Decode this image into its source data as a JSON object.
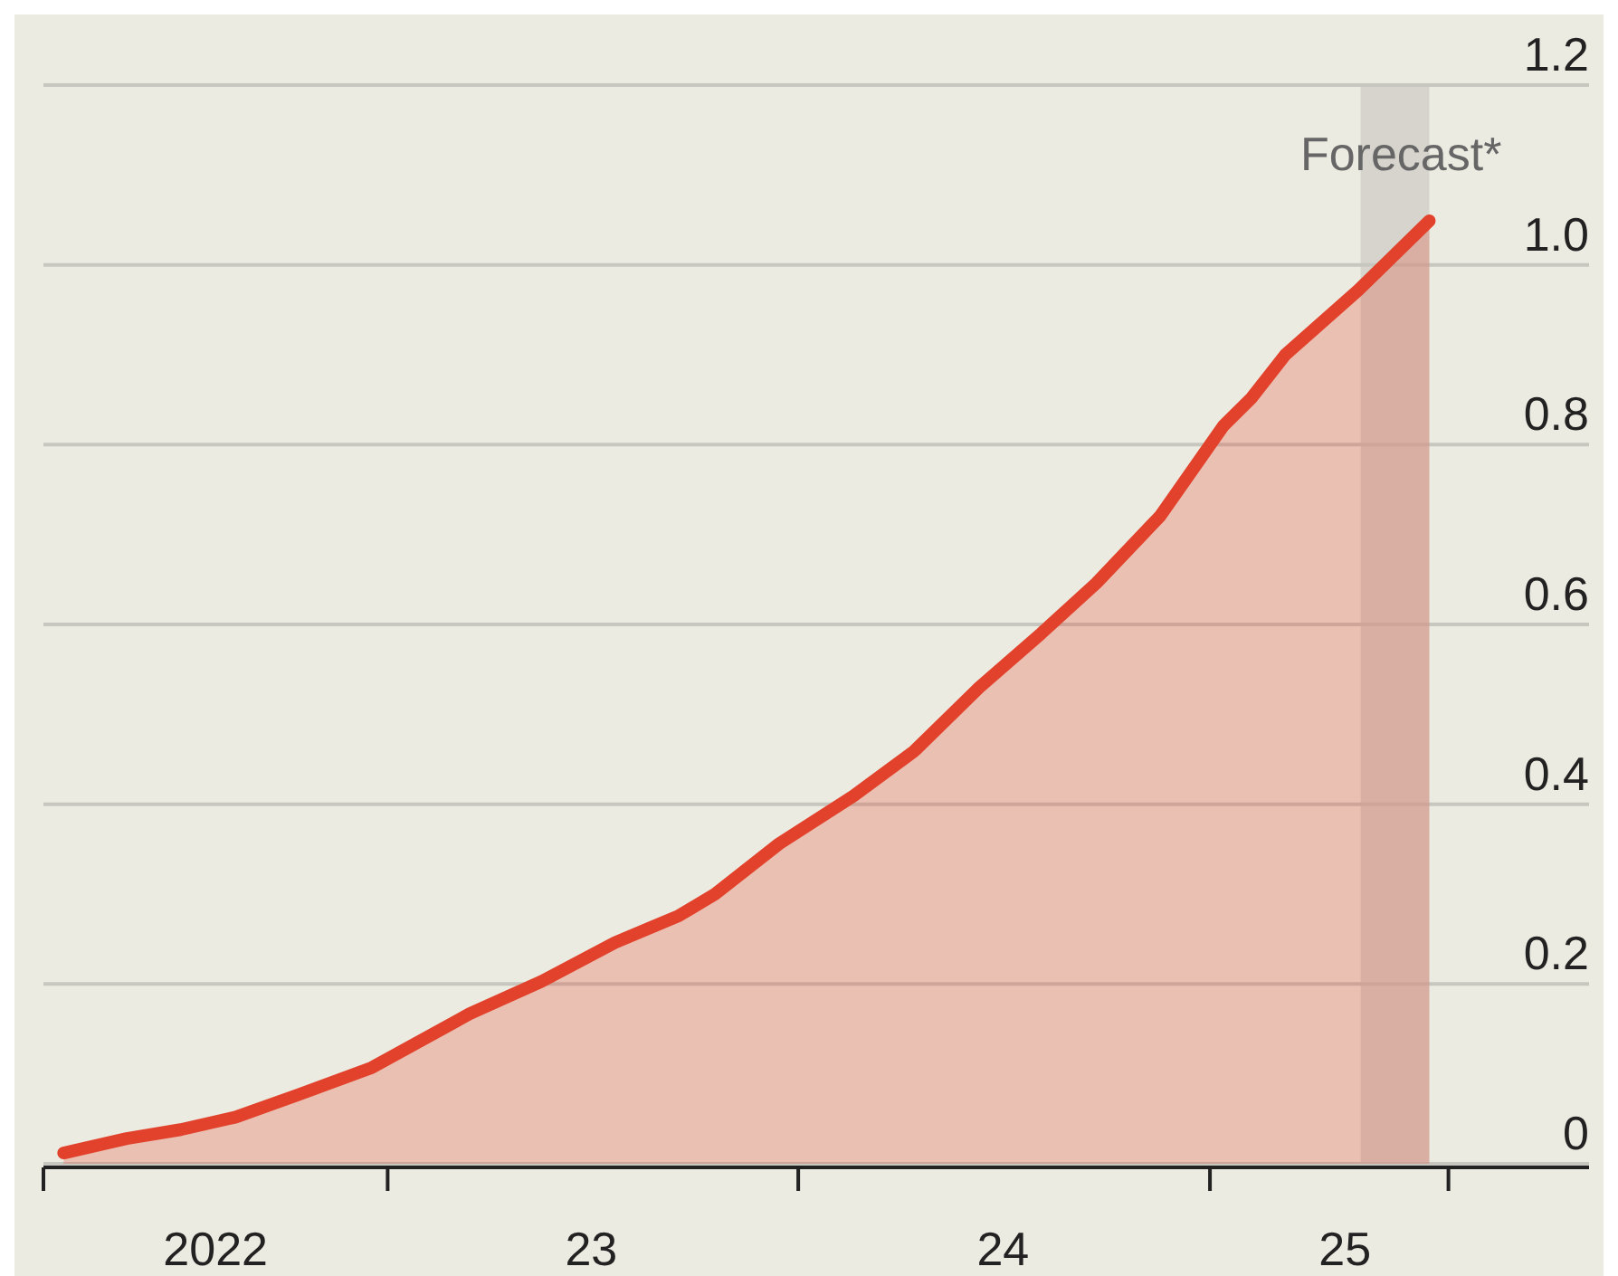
{
  "chart_data": {
    "type": "area",
    "x": [
      "2022-03-19",
      "2022-05-14",
      "2022-07-01",
      "2022-08-19",
      "2022-10-14",
      "2022-12-18",
      "2023-03-15",
      "2023-05-18",
      "2023-07-22",
      "2023-09-17",
      "2023-10-19",
      "2023-12-15",
      "2024-02-19",
      "2024-04-13",
      "2024-06-10",
      "2024-08-04",
      "2024-09-22",
      "2024-11-18",
      "2025-01-13",
      "2025-02-07",
      "2025-03-09",
      "2025-05-13",
      "2025-07-15"
    ],
    "series": [
      {
        "color": "#e2412b",
        "values": [
          0.012,
          0.028,
          0.038,
          0.052,
          0.077,
          0.107,
          0.167,
          0.203,
          0.246,
          0.276,
          0.3,
          0.356,
          0.409,
          0.459,
          0.53,
          0.59,
          0.646,
          0.721,
          0.821,
          0.852,
          0.9,
          0.972,
          1.049
        ]
      }
    ],
    "xlim": [
      "2022-03-01",
      "2025-12-04"
    ],
    "xticks": [
      {
        "value": "2022-03-01",
        "label": null
      },
      {
        "value": "2022-08-01",
        "label": "2022"
      },
      {
        "value": "2023-01-01",
        "label": null
      },
      {
        "value": "2023-07-01",
        "label": "23"
      },
      {
        "value": "2024-01-01",
        "label": null
      },
      {
        "value": "2024-07-01",
        "label": "24"
      },
      {
        "value": "2025-01-01",
        "label": null
      },
      {
        "value": "2025-05-01",
        "label": "25"
      },
      {
        "value": "2025-08-01",
        "label": null
      }
    ],
    "ylim": [
      0,
      1.2
    ],
    "yticks": [
      0,
      0.2,
      0.4,
      0.6,
      0.8,
      {
        "value": 1,
        "label": "1.0"
      },
      1.2
    ],
    "grid": "y",
    "line_style": "solid",
    "bands": [
      {
        "axis": "x",
        "from": "2025-05-15",
        "to": "2025-07-15",
        "label": "Forecast*",
        "color": "#d6d4cc"
      }
    ]
  }
}
